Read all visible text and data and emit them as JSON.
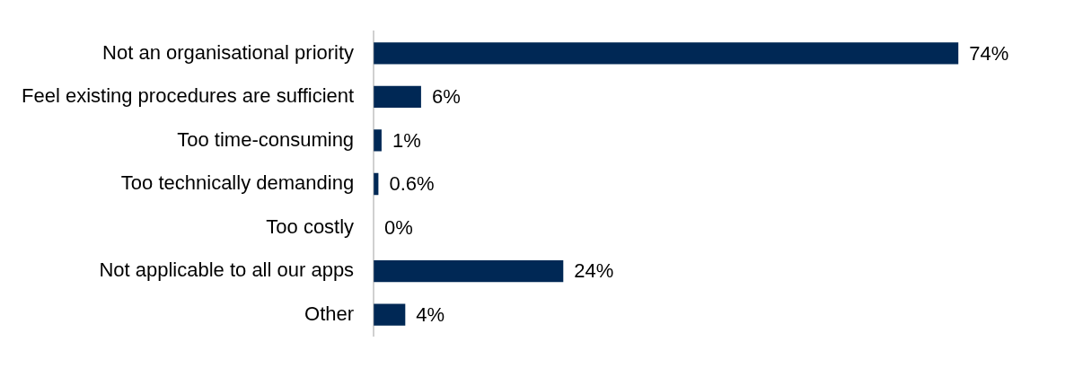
{
  "chart_data": {
    "type": "bar",
    "orientation": "horizontal",
    "categories": [
      "Not an organisational priority",
      "Feel existing procedures are sufficient",
      "Too time-consuming",
      "Too technically demanding",
      "Too costly",
      "Not applicable to all our apps",
      "Other"
    ],
    "values": [
      74,
      6,
      1,
      0.6,
      0,
      24,
      4
    ],
    "value_labels": [
      "74%",
      "6%",
      "1%",
      "0.6%",
      "0%",
      "24%",
      "4%"
    ],
    "color": "#002855",
    "grid": false,
    "legend": false,
    "tick_labels": "y"
  }
}
